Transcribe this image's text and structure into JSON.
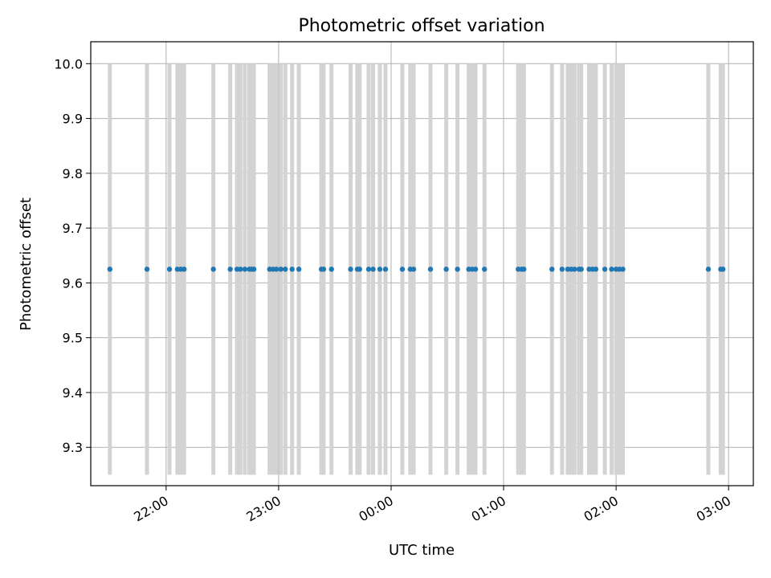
{
  "chart_data": {
    "type": "scatter",
    "title": "Photometric offset variation",
    "xlabel": "UTC time",
    "ylabel": "Photometric offset",
    "x_unit": "UTC hours (values past 24 fall on the following day)",
    "xlim": [
      21.33,
      27.22
    ],
    "ylim": [
      9.23,
      10.04
    ],
    "x_ticks": [
      22,
      23,
      24,
      25,
      26,
      27
    ],
    "x_tick_labels": [
      "22:00",
      "23:00",
      "00:00",
      "01:00",
      "02:00",
      "03:00"
    ],
    "y_ticks": [
      9.3,
      9.4,
      9.5,
      9.6,
      9.7,
      9.8,
      9.9,
      10.0
    ],
    "y_tick_labels": [
      "9.3",
      "9.4",
      "9.5",
      "9.6",
      "9.7",
      "9.8",
      "9.9",
      "10.0"
    ],
    "grid": true,
    "series": [
      {
        "color": "#1f77b4",
        "x": [
          21.5,
          21.83,
          22.03,
          22.1,
          22.13,
          22.16,
          22.42,
          22.57,
          22.63,
          22.66,
          22.7,
          22.74,
          22.76,
          22.78,
          22.92,
          22.95,
          22.98,
          23.02,
          23.06,
          23.12,
          23.18,
          23.38,
          23.4,
          23.47,
          23.64,
          23.7,
          23.72,
          23.8,
          23.84,
          23.9,
          23.95,
          24.1,
          24.17,
          24.2,
          24.35,
          24.49,
          24.59,
          24.69,
          24.72,
          24.75,
          24.83,
          25.13,
          25.16,
          25.18,
          25.43,
          25.52,
          25.57,
          25.6,
          25.63,
          25.67,
          25.69,
          25.76,
          25.79,
          25.82,
          25.9,
          25.96,
          26.0,
          26.03,
          26.06,
          26.82,
          26.93,
          26.95
        ],
        "y": [
          9.625,
          9.625,
          9.625,
          9.625,
          9.625,
          9.625,
          9.625,
          9.625,
          9.625,
          9.625,
          9.625,
          9.625,
          9.625,
          9.625,
          9.625,
          9.625,
          9.625,
          9.625,
          9.625,
          9.625,
          9.625,
          9.625,
          9.625,
          9.625,
          9.625,
          9.625,
          9.625,
          9.625,
          9.625,
          9.625,
          9.625,
          9.625,
          9.625,
          9.625,
          9.625,
          9.625,
          9.625,
          9.625,
          9.625,
          9.625,
          9.625,
          9.625,
          9.625,
          9.625,
          9.625,
          9.625,
          9.625,
          9.625,
          9.625,
          9.625,
          9.625,
          9.625,
          9.625,
          9.625,
          9.625,
          9.625,
          9.625,
          9.625,
          9.625,
          9.625,
          9.625,
          9.625
        ]
      }
    ],
    "vlines": {
      "color": "#d3d3d3",
      "ymin": 9.25,
      "ymax": 10.0,
      "x": [
        21.5,
        21.83,
        22.03,
        22.1,
        22.13,
        22.16,
        22.42,
        22.57,
        22.63,
        22.66,
        22.7,
        22.74,
        22.76,
        22.78,
        22.92,
        22.95,
        22.98,
        23.02,
        23.06,
        23.12,
        23.18,
        23.38,
        23.4,
        23.47,
        23.64,
        23.7,
        23.72,
        23.8,
        23.84,
        23.9,
        23.95,
        24.1,
        24.17,
        24.2,
        24.35,
        24.49,
        24.59,
        24.69,
        24.72,
        24.75,
        24.83,
        25.13,
        25.16,
        25.18,
        25.43,
        25.52,
        25.57,
        25.6,
        25.63,
        25.67,
        25.69,
        25.76,
        25.79,
        25.82,
        25.9,
        25.96,
        26.0,
        26.03,
        26.06,
        26.82,
        26.93,
        26.95
      ]
    }
  }
}
